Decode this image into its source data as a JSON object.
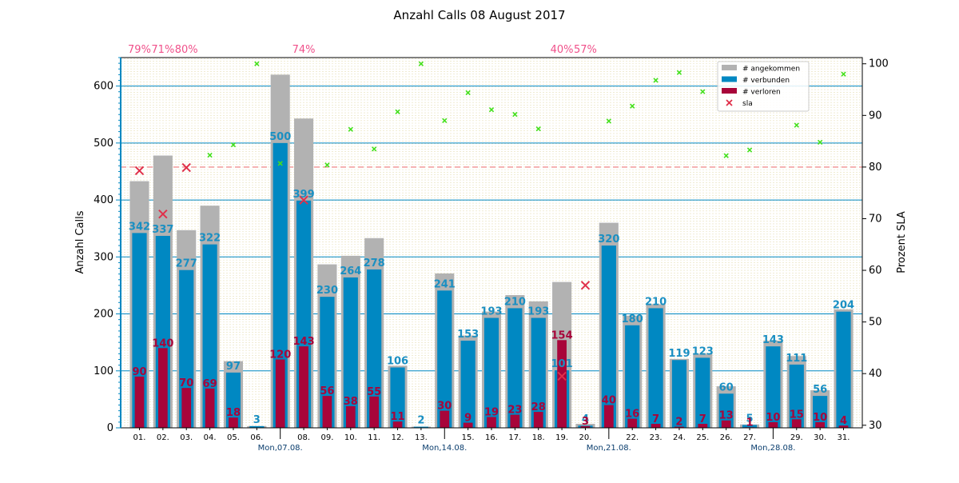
{
  "chart_data": {
    "type": "bar",
    "title": "Anzahl Calls 08 August 2017",
    "ylabel": "Anzahl Calls",
    "y2label": "Prozent SLA",
    "ylim": [
      0,
      650
    ],
    "y2lim": [
      29.5,
      101.2
    ],
    "yticks": [
      0,
      100,
      200,
      300,
      400,
      500,
      600
    ],
    "y2ticks": [
      30,
      40,
      50,
      60,
      70,
      80,
      90,
      100
    ],
    "sla_target": 80,
    "categories": [
      "01.",
      "02.",
      "03.",
      "04.",
      "05.",
      "06.",
      "07.",
      "08.",
      "09.",
      "10.",
      "11.",
      "12.",
      "13.",
      "14.",
      "15.",
      "16.",
      "17.",
      "18.",
      "19.",
      "20.",
      "21.",
      "22.",
      "23.",
      "24.",
      "25.",
      "26.",
      "27.",
      "28.",
      "29.",
      "30.",
      "31."
    ],
    "tick_labels": [
      "01.",
      "02.",
      "03.",
      "04.",
      "05.",
      "06.",
      "",
      "08.",
      "09.",
      "10.",
      "11.",
      "12.",
      "13.",
      "",
      "15.",
      "16.",
      "17.",
      "18.",
      "19.",
      "20.",
      "",
      "22.",
      "23.",
      "24.",
      "25.",
      "26.",
      "27.",
      "",
      "29.",
      "30.",
      "31."
    ],
    "week_labels": [
      {
        "index": 6,
        "text": "Mon,07.08."
      },
      {
        "index": 13,
        "text": "Mon,14.08."
      },
      {
        "index": 20,
        "text": "Mon,21.08."
      },
      {
        "index": 27,
        "text": "Mon,28.08."
      }
    ],
    "series": [
      {
        "name": "# angekommen",
        "color": "#b2b2b2",
        "values": [
          433,
          478,
          347,
          390,
          117,
          3,
          620,
          543,
          287,
          302,
          333,
          109,
          2,
          271,
          162,
          204,
          233,
          222,
          256,
          7,
          360,
          197,
          217,
          121,
          130,
          73,
          6,
          153,
          126,
          66,
          208
        ]
      },
      {
        "name": "# verbunden",
        "color": "#0088c2",
        "values": [
          342,
          337,
          277,
          322,
          97,
          3,
          500,
          399,
          230,
          264,
          278,
          106,
          2,
          241,
          153,
          193,
          210,
          193,
          101,
          4,
          320,
          180,
          210,
          119,
          123,
          60,
          5,
          143,
          111,
          56,
          204
        ]
      },
      {
        "name": "# verloren",
        "color": "#a8053a",
        "values": [
          90,
          140,
          70,
          69,
          18,
          0,
          120,
          143,
          56,
          38,
          55,
          11,
          0,
          30,
          9,
          19,
          23,
          28,
          154,
          3,
          40,
          16,
          7,
          2,
          7,
          13,
          1,
          10,
          15,
          10,
          4
        ]
      }
    ],
    "conn_labels": [
      "342",
      "337",
      "277",
      "322",
      "97",
      "3",
      "500",
      "399",
      "230",
      "264",
      "278",
      "106",
      "2",
      "241",
      "153",
      "193",
      "210",
      "193",
      "101",
      "4",
      "320",
      "180",
      "210",
      "119",
      "123",
      "60",
      "5",
      "143",
      "111",
      "56",
      "204"
    ],
    "lost_labels": [
      "90",
      "140",
      "70",
      "69",
      "18",
      "",
      "120",
      "143",
      "56",
      "38",
      "55",
      "11",
      "",
      "30",
      "9",
      "19",
      "23",
      "28",
      "154",
      "3",
      "40",
      "16",
      "7",
      "2",
      "7",
      "13",
      "1",
      "10",
      "15",
      "10",
      "4"
    ],
    "sla": [
      79.3,
      70.9,
      79.9,
      82.3,
      84.3,
      100,
      80.7,
      73.6,
      80.4,
      87.3,
      83.5,
      90.7,
      100,
      89.0,
      94.4,
      91.1,
      90.2,
      87.4,
      39.5,
      57.1,
      88.9,
      91.8,
      96.8,
      98.3,
      94.6,
      82.2,
      83.3,
      null,
      88.1,
      84.8,
      98.0
    ],
    "sla_below": [
      0,
      1,
      2,
      7,
      18,
      19
    ],
    "sla_top_labels": [
      "79%",
      "71%",
      "80%",
      "",
      "",
      "",
      "",
      "74%",
      "",
      "",
      "",
      "",
      "",
      "",
      "",
      "",
      "",
      "",
      "40%",
      "57%",
      "",
      "",
      "",
      "",
      "",
      "",
      "",
      "",
      "",
      "",
      ""
    ],
    "colors": {
      "sla_fail": "#e0304a",
      "sla_ok": "#44e01c",
      "target_line": "#f09090",
      "grid_major": "#0088c2",
      "grid_minor": "#e8e0b8",
      "axis_left": "#0088c2"
    },
    "legend": {
      "position": "top-right",
      "entries": [
        "# angekommen",
        "# verbunden",
        "# verloren",
        "sla"
      ]
    }
  }
}
